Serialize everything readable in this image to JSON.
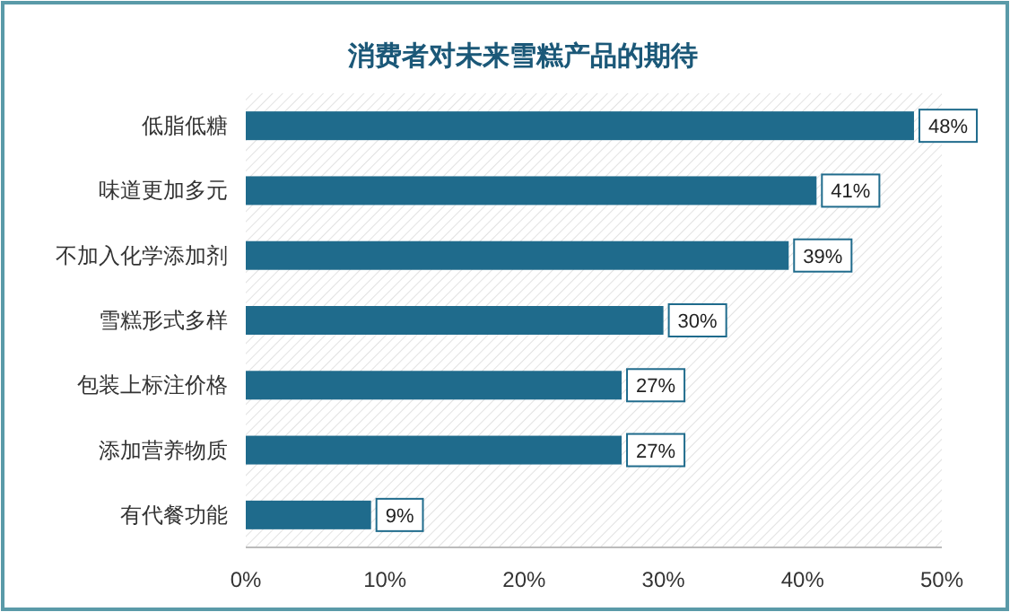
{
  "chart_data": {
    "type": "bar",
    "orientation": "horizontal",
    "title": "消费者对未来雪糕产品的期待",
    "categories": [
      "低脂低糖",
      "味道更加多元",
      "不加入化学添加剂",
      "雪糕形式多样",
      "包装上标注价格",
      "添加营养物质",
      "有代餐功能"
    ],
    "values": [
      48,
      41,
      39,
      30,
      27,
      27,
      9
    ],
    "color": "#1f6b8c",
    "value_labels": [
      "48%",
      "41%",
      "39%",
      "30%",
      "27%",
      "27%",
      "9%"
    ],
    "xlim": [
      0,
      50
    ],
    "xticks": [
      {
        "value": 0,
        "label": "0%"
      },
      {
        "value": 10,
        "label": "10%"
      },
      {
        "value": 20,
        "label": "20%"
      },
      {
        "value": 30,
        "label": "30%"
      },
      {
        "value": 40,
        "label": "40%"
      },
      {
        "value": 50,
        "label": "50%"
      }
    ],
    "grid": false
  }
}
